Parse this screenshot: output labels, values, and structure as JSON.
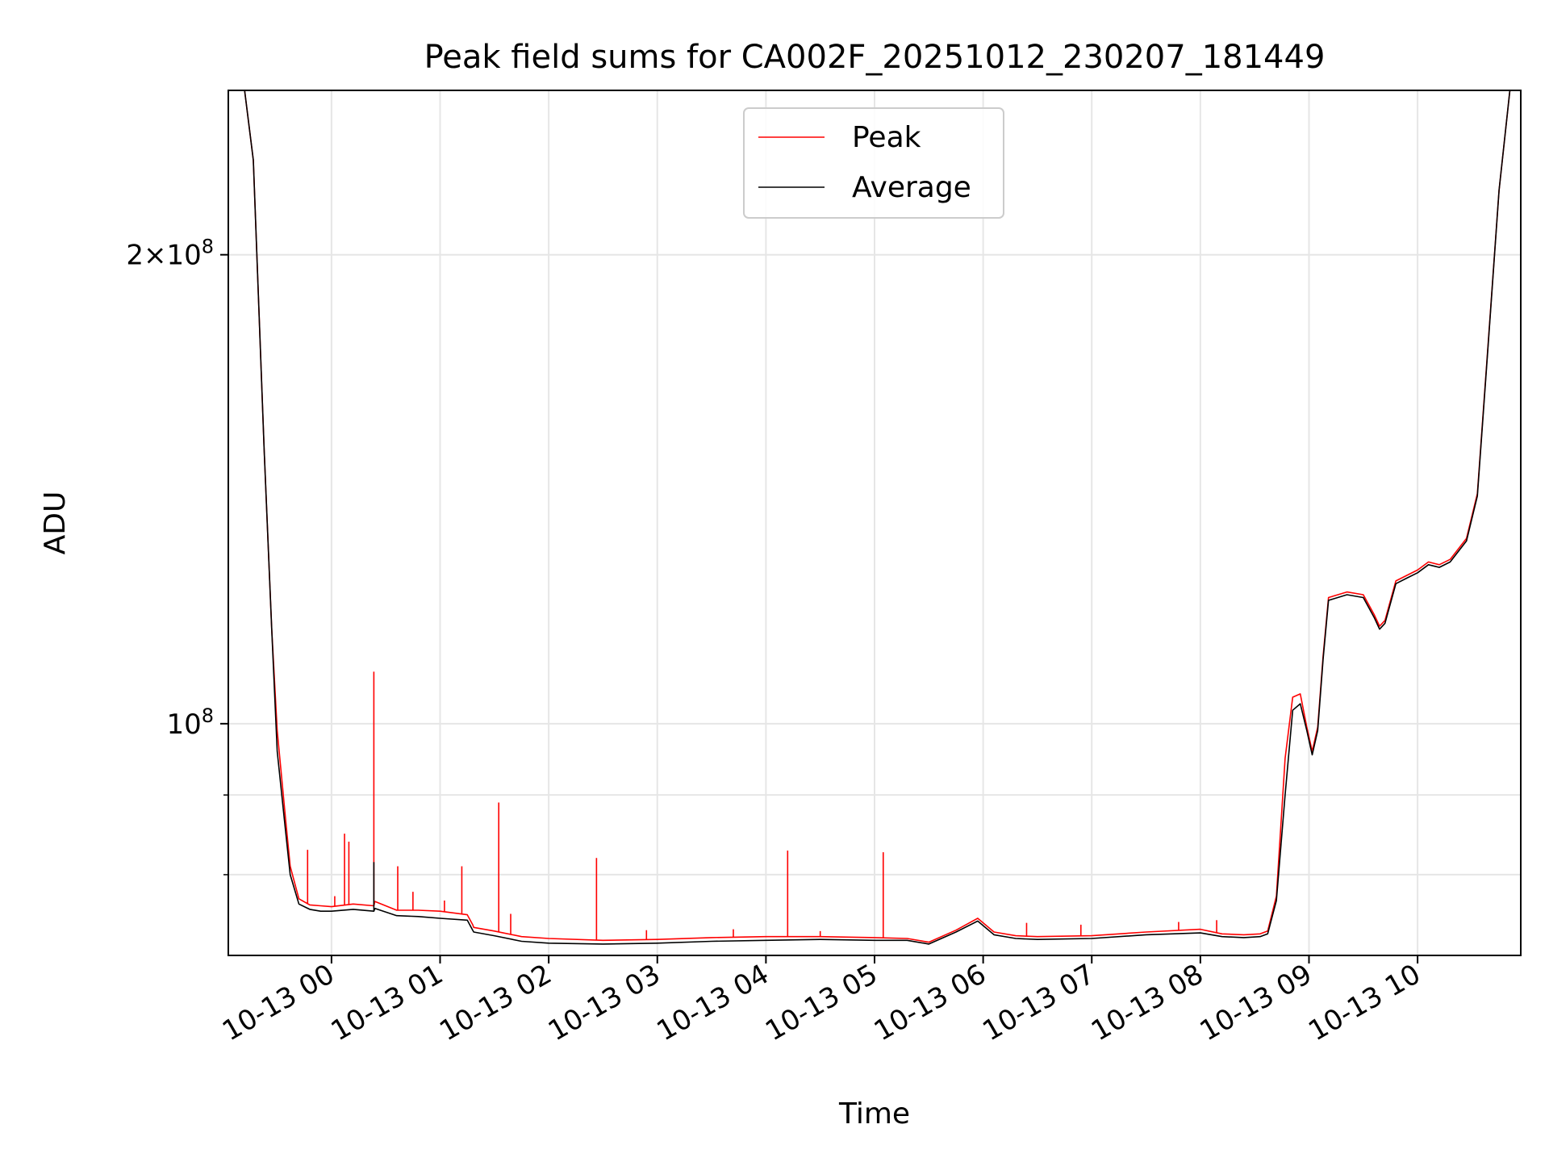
{
  "chart_data": {
    "type": "line",
    "title": "Peak field sums for CA002F_20251012_230207_181449",
    "xlabel": "Time",
    "ylabel": "ADU",
    "yscale": "log",
    "ylim": [
      71000000,
      255000000
    ],
    "xlim_hours": [
      -0.95,
      10.95
    ],
    "grid": true,
    "legend_position": "upper-center",
    "y_ticks": [
      {
        "value": 100000000,
        "base": "10",
        "exp": "8",
        "mult": ""
      },
      {
        "value": 200000000,
        "base": "10",
        "exp": "8",
        "mult": "2×"
      }
    ],
    "y_minor_ticks": [
      80000000,
      90000000
    ],
    "x_ticks": [
      {
        "hours": 0,
        "label": "10-13 00"
      },
      {
        "hours": 1,
        "label": "10-13 01"
      },
      {
        "hours": 2,
        "label": "10-13 02"
      },
      {
        "hours": 3,
        "label": "10-13 03"
      },
      {
        "hours": 4,
        "label": "10-13 04"
      },
      {
        "hours": 5,
        "label": "10-13 05"
      },
      {
        "hours": 6,
        "label": "10-13 06"
      },
      {
        "hours": 7,
        "label": "10-13 07"
      },
      {
        "hours": 8,
        "label": "10-13 08"
      },
      {
        "hours": 9,
        "label": "10-13 09"
      },
      {
        "hours": 10,
        "label": "10-13 10"
      }
    ],
    "series": [
      {
        "name": "Average",
        "color": "#000000",
        "x": [
          -0.95,
          -0.8,
          -0.72,
          -0.62,
          -0.55,
          -0.5,
          -0.42,
          -0.38,
          -0.3,
          -0.2,
          -0.1,
          0.0,
          0.2,
          0.39,
          0.4,
          0.6,
          0.8,
          1.0,
          1.25,
          1.3,
          1.31,
          1.5,
          1.75,
          2.0,
          2.5,
          3.0,
          3.5,
          4.0,
          4.5,
          5.0,
          5.3,
          5.5,
          5.75,
          5.95,
          6.1,
          6.3,
          6.5,
          7.0,
          7.5,
          8.0,
          8.2,
          8.4,
          8.55,
          8.62,
          8.7,
          8.78,
          8.85,
          8.92,
          8.98,
          9.03,
          9.08,
          9.13,
          9.18,
          9.35,
          9.5,
          9.6,
          9.65,
          9.7,
          9.8,
          9.9,
          10.0,
          10.1,
          10.2,
          10.3,
          10.45,
          10.55,
          10.65,
          10.75,
          10.85,
          10.95
        ],
        "y": [
          255000000,
          255000000,
          230000000,
          150000000,
          115000000,
          96000000,
          85000000,
          80000000,
          76600000,
          76000000,
          75800000,
          75800000,
          76000000,
          75800000,
          76100000,
          75300000,
          75200000,
          75000000,
          74800000,
          73700000,
          73500000,
          73100000,
          72500000,
          72300000,
          72200000,
          72300000,
          72500000,
          72600000,
          72700000,
          72600000,
          72600000,
          72200000,
          73500000,
          74700000,
          73200000,
          72800000,
          72700000,
          72800000,
          73200000,
          73400000,
          73000000,
          72900000,
          73000000,
          73300000,
          77000000,
          90000000,
          102000000,
          103000000,
          99000000,
          95500000,
          99000000,
          110000000,
          120000000,
          121000000,
          120500000,
          117000000,
          115000000,
          116000000,
          123000000,
          124000000,
          125000000,
          126500000,
          126000000,
          127000000,
          131000000,
          140000000,
          175000000,
          220000000,
          255000000,
          255000000
        ]
      },
      {
        "name": "Peak",
        "color": "#ff0000",
        "x": [
          -0.95,
          -0.8,
          -0.72,
          -0.62,
          -0.55,
          -0.5,
          -0.42,
          -0.38,
          -0.3,
          -0.2,
          -0.1,
          0.0,
          0.2,
          0.39,
          0.4,
          0.6,
          0.8,
          1.0,
          1.25,
          1.3,
          1.31,
          1.5,
          1.75,
          2.0,
          2.5,
          3.0,
          3.5,
          4.0,
          4.5,
          5.0,
          5.3,
          5.5,
          5.75,
          5.95,
          6.1,
          6.3,
          6.5,
          7.0,
          7.5,
          8.0,
          8.2,
          8.4,
          8.55,
          8.62,
          8.7,
          8.78,
          8.85,
          8.92,
          8.98,
          9.03,
          9.08,
          9.13,
          9.18,
          9.35,
          9.5,
          9.6,
          9.65,
          9.7,
          9.8,
          9.9,
          10.0,
          10.1,
          10.2,
          10.3,
          10.45,
          10.55,
          10.65,
          10.75,
          10.85,
          10.95
        ],
        "y": [
          255000000,
          255000000,
          230000000,
          150000000,
          115000000,
          99000000,
          86500000,
          81000000,
          77200000,
          76500000,
          76400000,
          76300000,
          76600000,
          76400000,
          76900000,
          75900000,
          75900000,
          75800000,
          75400000,
          74300000,
          74000000,
          73600000,
          73000000,
          72800000,
          72600000,
          72700000,
          72900000,
          73000000,
          73000000,
          72900000,
          72800000,
          72400000,
          73700000,
          75000000,
          73500000,
          73100000,
          73000000,
          73100000,
          73500000,
          73800000,
          73300000,
          73200000,
          73300000,
          73600000,
          77500000,
          95000000,
          104000000,
          104500000,
          99500000,
          96000000,
          99500000,
          110500000,
          120500000,
          121500000,
          121000000,
          117500000,
          115500000,
          116500000,
          123500000,
          124500000,
          125500000,
          127000000,
          126500000,
          127500000,
          131500000,
          140500000,
          175500000,
          220000000,
          255000000,
          255000000
        ]
      }
    ],
    "peak_spikes": [
      {
        "hours": -0.22,
        "value": 83000000
      },
      {
        "hours": 0.03,
        "value": 77500000
      },
      {
        "hours": 0.12,
        "value": 85000000
      },
      {
        "hours": 0.16,
        "value": 84000000
      },
      {
        "hours": 0.39,
        "value": 108000000
      },
      {
        "hours": 0.61,
        "value": 81000000
      },
      {
        "hours": 0.75,
        "value": 78000000
      },
      {
        "hours": 1.04,
        "value": 77000000
      },
      {
        "hours": 1.2,
        "value": 81000000
      },
      {
        "hours": 1.54,
        "value": 89000000
      },
      {
        "hours": 1.65,
        "value": 75500000
      },
      {
        "hours": 2.44,
        "value": 82000000
      },
      {
        "hours": 2.9,
        "value": 73700000
      },
      {
        "hours": 3.7,
        "value": 73800000
      },
      {
        "hours": 4.2,
        "value": 82900000
      },
      {
        "hours": 4.5,
        "value": 73600000
      },
      {
        "hours": 5.08,
        "value": 82700000
      },
      {
        "hours": 6.4,
        "value": 74500000
      },
      {
        "hours": 6.9,
        "value": 74300000
      },
      {
        "hours": 7.8,
        "value": 74600000
      },
      {
        "hours": 8.15,
        "value": 74800000
      }
    ],
    "average_spike": {
      "hours": 0.39,
      "value": 81500000
    },
    "legend": [
      {
        "label": "Peak",
        "color": "#ff0000"
      },
      {
        "label": "Average",
        "color": "#000000"
      }
    ]
  }
}
